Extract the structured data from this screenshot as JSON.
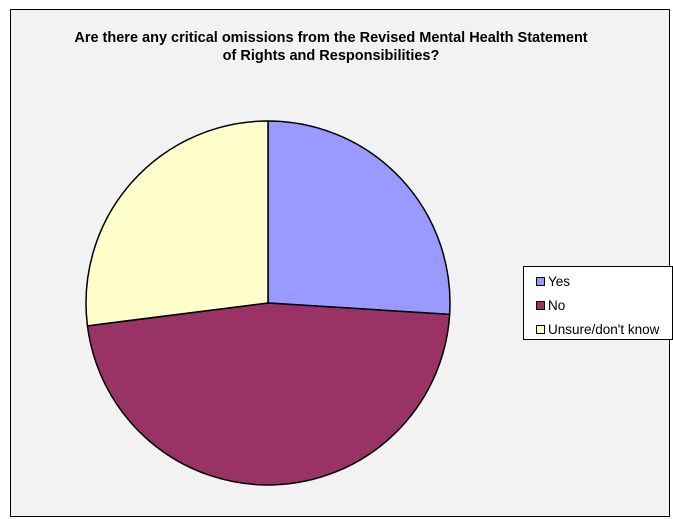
{
  "chart_data": {
    "type": "pie",
    "title": "Are there any critical omissions from the Revised Mental Health Statement\nof Rights and Responsibilities?",
    "categories": [
      "Yes",
      "No",
      "Unsure/don't know"
    ],
    "values": [
      26,
      47,
      27
    ],
    "colors": [
      "#9999ff",
      "#993366",
      "#ffffcc"
    ],
    "start_angle_deg": 0,
    "direction": "clockwise",
    "legend_position": "right"
  }
}
